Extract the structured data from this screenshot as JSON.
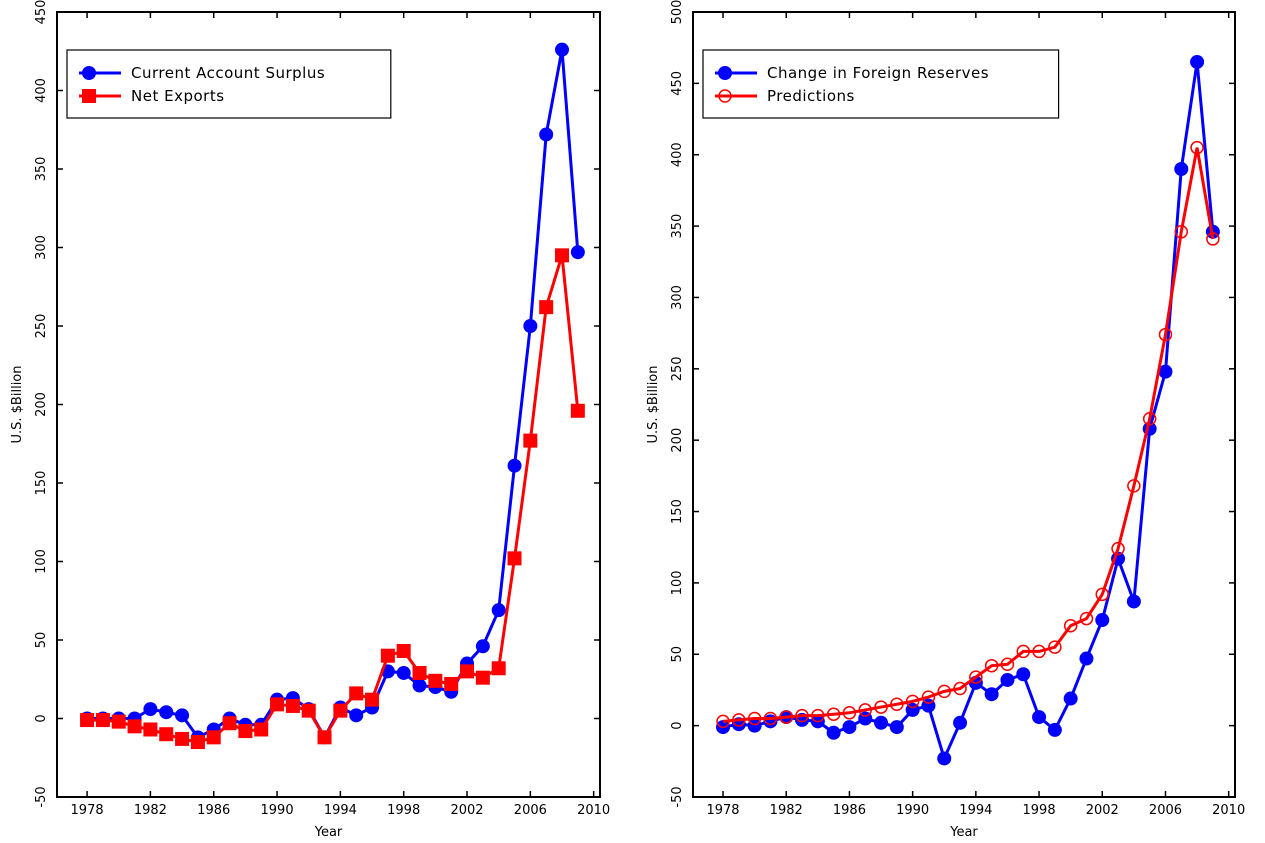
{
  "chart_data": [
    {
      "type": "line",
      "xlabel": "Year",
      "ylabel": "U.S. $Billion",
      "x": [
        1978,
        1979,
        1980,
        1981,
        1982,
        1983,
        1984,
        1985,
        1986,
        1987,
        1988,
        1989,
        1990,
        1991,
        1992,
        1993,
        1994,
        1995,
        1996,
        1997,
        1998,
        1999,
        2000,
        2001,
        2002,
        2003,
        2004,
        2005,
        2006,
        2007,
        2008,
        2009
      ],
      "series": [
        {
          "name": "Current Account Surplus",
          "color": "#0000ff",
          "marker": "circle",
          "values": [
            0,
            0,
            0,
            0,
            6,
            4,
            2,
            -12,
            -7,
            0,
            -4,
            -4,
            12,
            13,
            6,
            -12,
            7,
            2,
            7,
            30,
            29,
            21,
            20,
            17,
            35,
            46,
            69,
            161,
            250,
            372,
            426,
            297
          ]
        },
        {
          "name": "Net Exports",
          "color": "#ff0000",
          "marker": "square",
          "values": [
            -1,
            -1,
            -2,
            -5,
            -7,
            -10,
            -13,
            -15,
            -12,
            -3,
            -8,
            -7,
            9,
            8,
            5,
            -12,
            5,
            16,
            12,
            40,
            43,
            29,
            24,
            22,
            30,
            26,
            32,
            102,
            177,
            262,
            295,
            196
          ]
        }
      ],
      "xlim": [
        1976.1,
        2010.4
      ],
      "xticks": [
        1978,
        1982,
        1986,
        1990,
        1994,
        1998,
        2002,
        2006,
        2010
      ],
      "ylim": [
        -50,
        450
      ],
      "yticks": [
        -50,
        0,
        50,
        100,
        150,
        200,
        250,
        300,
        350,
        400,
        450
      ],
      "legend": "upper left"
    },
    {
      "type": "line",
      "xlabel": "Year",
      "ylabel": "U.S. $Billion",
      "x": [
        1978,
        1979,
        1980,
        1981,
        1982,
        1983,
        1984,
        1985,
        1986,
        1987,
        1988,
        1989,
        1990,
        1991,
        1992,
        1993,
        1994,
        1995,
        1996,
        1997,
        1998,
        1999,
        2000,
        2001,
        2002,
        2003,
        2004,
        2005,
        2006,
        2007,
        2008,
        2009
      ],
      "series": [
        {
          "name": "Change in Foreign Reserves",
          "color": "#0000ff",
          "marker": "circle",
          "values": [
            -1,
            1,
            0,
            3,
            6,
            4,
            3,
            -5,
            -1,
            5,
            2,
            -1,
            11,
            14,
            -23,
            2,
            30,
            22,
            32,
            36,
            6,
            -3,
            19,
            47,
            74,
            117,
            87,
            208,
            248,
            390,
            465,
            346
          ]
        },
        {
          "name": "Predictions",
          "color": "#ff0000",
          "marker": "open-circle",
          "values": [
            3,
            4,
            5,
            5,
            6,
            7,
            7,
            8,
            9,
            11,
            13,
            15,
            17,
            20,
            24,
            26,
            34,
            42,
            43,
            52,
            52,
            55,
            70,
            75,
            92,
            124,
            168,
            215,
            274,
            346,
            405,
            341
          ]
        }
      ],
      "xlim": [
        1976.1,
        2010.4
      ],
      "xticks": [
        1978,
        1982,
        1986,
        1990,
        1994,
        1998,
        2002,
        2006,
        2010
      ],
      "ylim": [
        -50,
        500
      ],
      "yticks": [
        -50,
        0,
        50,
        100,
        150,
        200,
        250,
        300,
        350,
        400,
        450,
        500
      ],
      "legend": "upper left"
    }
  ]
}
